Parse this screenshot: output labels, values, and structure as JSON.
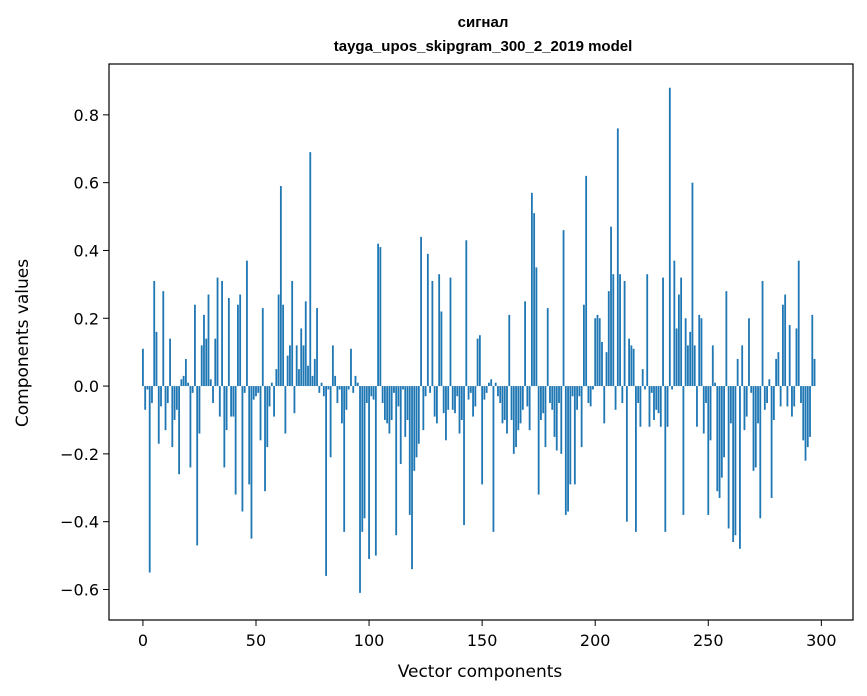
{
  "chart_data": {
    "type": "bar",
    "title": "сигнал",
    "subtitle": "tayga_upos_skipgram_300_2_2019 model",
    "xlabel": "Vector components",
    "ylabel": "Components values",
    "xlim": [
      -15,
      314
    ],
    "ylim": [
      -0.69,
      0.95
    ],
    "xticks": [
      0,
      50,
      100,
      150,
      200,
      250,
      300
    ],
    "yticks": [
      -0.6,
      -0.4,
      -0.2,
      0.0,
      0.2,
      0.4,
      0.6,
      0.8
    ],
    "xtick_labels": [
      "0",
      "50",
      "100",
      "150",
      "200",
      "250",
      "300"
    ],
    "ytick_labels": [
      "−0.6",
      "−0.4",
      "−0.2",
      "0.0",
      "0.2",
      "0.4",
      "0.6",
      "0.8"
    ],
    "bar_color": "#1f77b4",
    "grid": false,
    "values": [
      0.11,
      -0.07,
      -0.01,
      -0.55,
      -0.05,
      0.31,
      0.16,
      -0.17,
      -0.06,
      0.28,
      -0.13,
      -0.05,
      0.14,
      -0.18,
      -0.1,
      -0.07,
      -0.26,
      0.02,
      0.03,
      0.08,
      0.01,
      -0.24,
      -0.02,
      0.24,
      -0.47,
      -0.14,
      0.12,
      0.21,
      0.14,
      0.27,
      0.02,
      -0.05,
      0.14,
      0.32,
      -0.09,
      0.31,
      -0.24,
      -0.13,
      0.26,
      -0.09,
      -0.09,
      -0.32,
      0.24,
      0.27,
      -0.37,
      -0.02,
      0.37,
      -0.29,
      -0.45,
      -0.04,
      -0.03,
      -0.02,
      -0.16,
      0.23,
      -0.31,
      -0.18,
      -0.06,
      0.01,
      -0.09,
      0.05,
      0.27,
      0.59,
      0.24,
      -0.14,
      0.09,
      0.12,
      0.31,
      -0.08,
      0.12,
      0.05,
      0.17,
      0.12,
      0.25,
      0.06,
      0.69,
      0.03,
      0.08,
      0.23,
      -0.02,
      0.01,
      -0.03,
      -0.56,
      -0.01,
      -0.21,
      0.12,
      0.03,
      -0.05,
      -0.01,
      -0.11,
      -0.43,
      -0.07,
      -0.01,
      0.11,
      -0.02,
      0.03,
      0.01,
      -0.61,
      -0.43,
      -0.39,
      -0.05,
      -0.51,
      -0.03,
      -0.04,
      -0.5,
      0.42,
      0.41,
      -0.05,
      -0.1,
      -0.11,
      -0.14,
      -0.1,
      -0.02,
      -0.44,
      -0.06,
      -0.23,
      -0.01,
      -0.15,
      -0.1,
      -0.38,
      -0.54,
      -0.25,
      -0.21,
      -0.17,
      0.44,
      -0.13,
      -0.03,
      0.39,
      -0.02,
      0.31,
      -0.09,
      -0.11,
      0.33,
      0.22,
      -0.08,
      -0.16,
      -0.07,
      0.32,
      -0.07,
      -0.08,
      -0.03,
      -0.14,
      -0.1,
      -0.41,
      0.43,
      -0.04,
      -0.02,
      -0.09,
      -0.06,
      0.14,
      0.15,
      -0.29,
      -0.04,
      -0.02,
      0.01,
      0.02,
      -0.43,
      0.01,
      -0.03,
      -0.05,
      -0.11,
      -0.1,
      -0.14,
      0.21,
      -0.1,
      -0.2,
      -0.18,
      -0.13,
      -0.11,
      -0.07,
      0.25,
      -0.06,
      -0.13,
      0.57,
      0.51,
      0.35,
      -0.32,
      -0.1,
      -0.08,
      -0.18,
      0.23,
      -0.05,
      -0.07,
      -0.15,
      -0.19,
      -0.05,
      -0.2,
      0.46,
      -0.38,
      -0.37,
      -0.29,
      -0.03,
      -0.29,
      -0.07,
      -0.03,
      -0.18,
      0.24,
      0.62,
      -0.05,
      -0.06,
      -0.01,
      0.2,
      0.21,
      0.2,
      0.13,
      -0.11,
      0.1,
      0.28,
      0.47,
      0.33,
      -0.07,
      0.76,
      0.33,
      -0.05,
      0.31,
      -0.4,
      0.14,
      0.12,
      0.11,
      -0.43,
      -0.05,
      -0.12,
      0.05,
      -0.01,
      0.33,
      -0.12,
      -0.02,
      -0.1,
      -0.07,
      -0.08,
      -0.12,
      0.32,
      -0.43,
      -0.12,
      0.88,
      -0.01,
      0.37,
      0.17,
      0.27,
      0.32,
      -0.38,
      0.2,
      0.12,
      0.16,
      0.6,
      0.12,
      -0.12,
      0.21,
      0.2,
      -0.14,
      -0.05,
      -0.38,
      -0.16,
      0.12,
      0.01,
      -0.31,
      -0.33,
      -0.27,
      -0.21,
      0.28,
      -0.42,
      -0.11,
      -0.46,
      -0.44,
      0.08,
      -0.48,
      0.12,
      -0.13,
      -0.09,
      0.2,
      -0.02,
      -0.25,
      -0.24,
      -0.11,
      -0.39,
      0.31,
      -0.07,
      -0.05,
      0.02,
      -0.33,
      -0.1,
      0.08,
      0.1,
      -0.06,
      0.24,
      0.27,
      -0.06,
      0.18,
      -0.09,
      -0.06,
      0.17,
      0.37,
      -0.05,
      -0.16,
      -0.22,
      -0.18,
      -0.15,
      0.21,
      0.08
    ]
  }
}
